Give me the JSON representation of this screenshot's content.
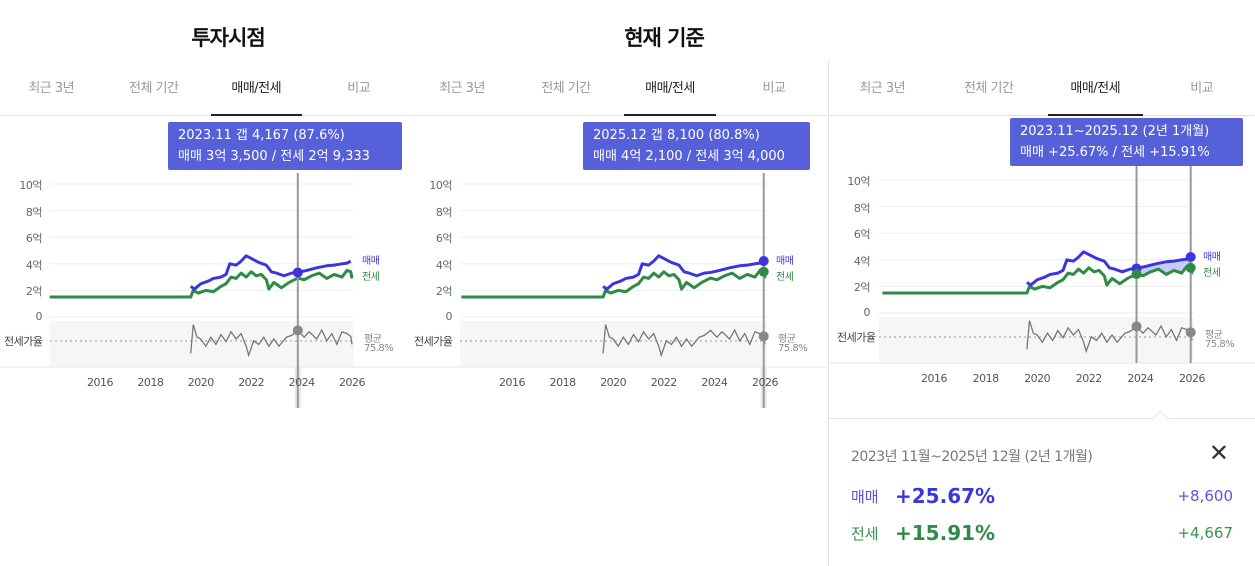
{
  "titles": {
    "invest": "투자시점",
    "current": "현재 기준"
  },
  "tabs": [
    "최근 3년",
    "전체 기간",
    "매매/전세",
    "비교"
  ],
  "active_tab": 2,
  "colors": {
    "sale": "#3b35e0",
    "jeonse": "#2e8b45",
    "ratio": "#777777",
    "tooltip": "#5660d8"
  },
  "axis": {
    "y_ticks": [
      {
        "v": 10,
        "label": "10억"
      },
      {
        "v": 8,
        "label": "8억"
      },
      {
        "v": 6,
        "label": "6억"
      },
      {
        "v": 4,
        "label": "4억"
      },
      {
        "v": 2,
        "label": "2억"
      },
      {
        "v": 0,
        "label": "0"
      }
    ],
    "x_ticks": [
      2016,
      2018,
      2020,
      2022,
      2024,
      2026
    ],
    "ratio_label": "전세가율",
    "avg_label": "평균",
    "avg_value": "75.8%",
    "series_labels": {
      "sale": "매매",
      "jeonse": "전세"
    }
  },
  "chart_data": {
    "type": "line",
    "unit": "억",
    "xlim": [
      2014.0,
      2026.0
    ],
    "ylim": [
      0,
      10
    ],
    "series": [
      {
        "name": "매매",
        "points": [
          [
            2019.6,
            2.3
          ],
          [
            2019.75,
            2.1
          ],
          [
            2020.0,
            2.5
          ],
          [
            2020.3,
            2.7
          ],
          [
            2020.5,
            2.9
          ],
          [
            2020.8,
            3.0
          ],
          [
            2021.0,
            3.2
          ],
          [
            2021.15,
            4.0
          ],
          [
            2021.4,
            3.9
          ],
          [
            2021.6,
            4.2
          ],
          [
            2021.8,
            4.6
          ],
          [
            2022.0,
            4.4
          ],
          [
            2022.3,
            4.1
          ],
          [
            2022.6,
            3.9
          ],
          [
            2022.8,
            3.4
          ],
          [
            2023.0,
            3.3
          ],
          [
            2023.3,
            3.1
          ],
          [
            2023.6,
            3.3
          ],
          [
            2023.85,
            3.35
          ],
          [
            2024.2,
            3.5
          ],
          [
            2024.6,
            3.7
          ],
          [
            2025.0,
            3.85
          ],
          [
            2025.3,
            3.9
          ],
          [
            2025.6,
            4.0
          ],
          [
            2025.8,
            4.05
          ],
          [
            2025.95,
            4.21
          ]
        ]
      },
      {
        "name": "전세",
        "points": [
          [
            2014.0,
            1.5
          ],
          [
            2019.6,
            1.5
          ],
          [
            2019.7,
            2.0
          ],
          [
            2019.9,
            1.8
          ],
          [
            2020.2,
            2.0
          ],
          [
            2020.5,
            1.9
          ],
          [
            2020.8,
            2.3
          ],
          [
            2021.0,
            2.5
          ],
          [
            2021.2,
            3.0
          ],
          [
            2021.4,
            2.9
          ],
          [
            2021.6,
            3.3
          ],
          [
            2021.8,
            3.0
          ],
          [
            2022.0,
            3.4
          ],
          [
            2022.2,
            3.1
          ],
          [
            2022.4,
            3.2
          ],
          [
            2022.6,
            2.8
          ],
          [
            2022.7,
            2.1
          ],
          [
            2022.9,
            2.6
          ],
          [
            2023.2,
            2.2
          ],
          [
            2023.5,
            2.6
          ],
          [
            2023.85,
            2.93
          ],
          [
            2024.1,
            2.8
          ],
          [
            2024.4,
            3.1
          ],
          [
            2024.7,
            3.3
          ],
          [
            2025.0,
            2.9
          ],
          [
            2025.3,
            3.2
          ],
          [
            2025.6,
            3.0
          ],
          [
            2025.8,
            3.5
          ],
          [
            2025.95,
            3.4
          ],
          [
            2026.0,
            2.9
          ]
        ]
      },
      {
        "name": "전세가율",
        "points": [
          [
            2019.6,
            0.62
          ],
          [
            2019.7,
            0.94
          ],
          [
            2019.85,
            0.8
          ],
          [
            2020.0,
            0.78
          ],
          [
            2020.2,
            0.7
          ],
          [
            2020.4,
            0.8
          ],
          [
            2020.6,
            0.72
          ],
          [
            2020.8,
            0.83
          ],
          [
            2021.0,
            0.75
          ],
          [
            2021.2,
            0.86
          ],
          [
            2021.4,
            0.78
          ],
          [
            2021.6,
            0.84
          ],
          [
            2021.8,
            0.7
          ],
          [
            2021.9,
            0.6
          ],
          [
            2022.1,
            0.76
          ],
          [
            2022.3,
            0.72
          ],
          [
            2022.5,
            0.8
          ],
          [
            2022.7,
            0.7
          ],
          [
            2022.9,
            0.78
          ],
          [
            2023.1,
            0.7
          ],
          [
            2023.4,
            0.8
          ],
          [
            2023.6,
            0.82
          ],
          [
            2023.85,
            0.876
          ],
          [
            2024.1,
            0.8
          ],
          [
            2024.3,
            0.86
          ],
          [
            2024.6,
            0.78
          ],
          [
            2024.8,
            0.88
          ],
          [
            2025.0,
            0.76
          ],
          [
            2025.2,
            0.84
          ],
          [
            2025.4,
            0.72
          ],
          [
            2025.6,
            0.86
          ],
          [
            2025.8,
            0.84
          ],
          [
            2025.95,
            0.81
          ],
          [
            2026.0,
            0.72
          ]
        ]
      }
    ]
  },
  "panels": [
    {
      "tooltip": [
        "2023.11  갭 4,167 (87.6%)",
        "매매 3억 3,500 / 전세 2억 9,333"
      ],
      "markers": [
        2023.85
      ]
    },
    {
      "tooltip": [
        "2025.12  갭 8,100 (80.8%)",
        "매매 4억 2,100 / 전세 3억 4,000"
      ],
      "markers": [
        2025.95
      ]
    },
    {
      "tooltip": [
        "2023.11~2025.12 (2년 1개월)",
        "매매 +25.67%  /  전세 +15.91%"
      ],
      "markers": [
        2023.85,
        2025.95
      ]
    }
  ],
  "summary": {
    "title": "2023년 11월~2025년 12월 (2년 1개월)",
    "close": "✕",
    "sale": {
      "label": "매매",
      "pct": "+25.67%",
      "diff": "+8,600"
    },
    "jeonse": {
      "label": "전세",
      "pct": "+15.91%",
      "diff": "+4,667"
    }
  }
}
